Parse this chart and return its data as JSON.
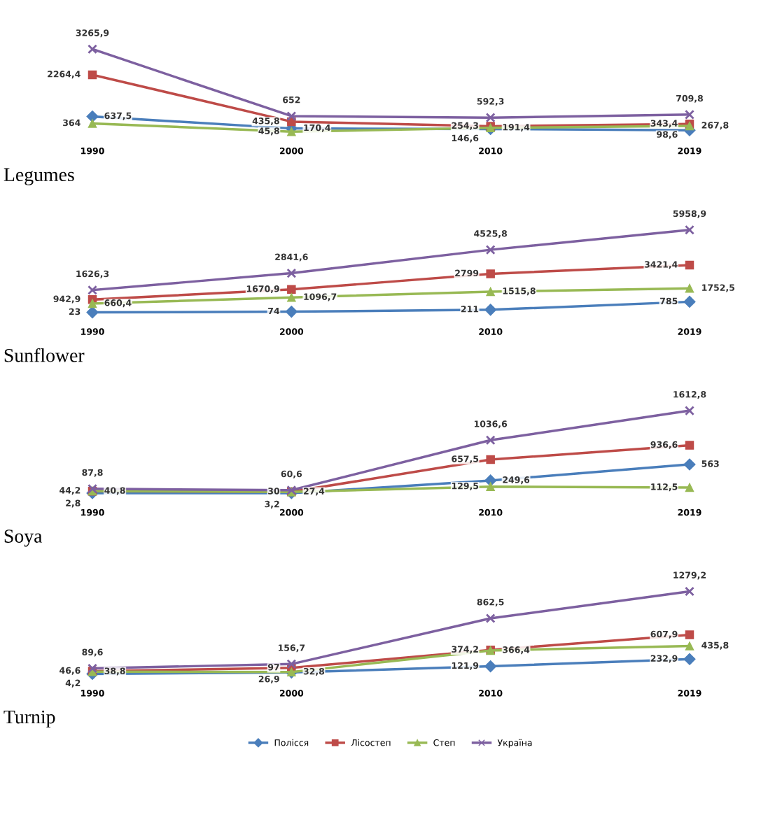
{
  "chart_data": [
    {
      "type": "line",
      "title": "Legumes",
      "categories": [
        "1990",
        "2000",
        "2010",
        "2019"
      ],
      "tick_labels": "x",
      "grid": false,
      "series": [
        {
          "color": "#4a7ebb",
          "marker": "diamond",
          "values": [
            637.5,
            170.4,
            146.6,
            98.6
          ],
          "value_labels": [
            "637,5",
            "170,4",
            "146,6",
            "98,6"
          ]
        },
        {
          "color": "#be4b48",
          "marker": "square",
          "values": [
            2264.4,
            435.8,
            254.3,
            343.4
          ],
          "value_labels": [
            "2264,4",
            "435,8",
            "254,3",
            "343,4"
          ]
        },
        {
          "color": "#98b954",
          "marker": "triangle",
          "values": [
            364,
            45.8,
            191.4,
            267.8
          ],
          "value_labels": [
            "364",
            "45,8",
            "191,4",
            "267,8"
          ]
        },
        {
          "color": "#7d60a0",
          "marker": "cross",
          "values": [
            3265.9,
            652,
            592.3,
            709.8
          ],
          "value_labels": [
            "3265,9",
            "652",
            "592,3",
            "709,8"
          ]
        }
      ]
    },
    {
      "type": "line",
      "title": "Sunflower",
      "categories": [
        "1990",
        "2000",
        "2010",
        "2019"
      ],
      "tick_labels": "x",
      "grid": false,
      "series": [
        {
          "color": "#4a7ebb",
          "marker": "diamond",
          "values": [
            23,
            74,
            211,
            785
          ],
          "value_labels": [
            "23",
            "74",
            "211",
            "785"
          ]
        },
        {
          "color": "#be4b48",
          "marker": "square",
          "values": [
            942.9,
            1670.9,
            2799,
            3421.4
          ],
          "value_labels": [
            "942,9",
            "1670,9",
            "2799",
            "3421,4"
          ]
        },
        {
          "color": "#98b954",
          "marker": "triangle",
          "values": [
            660.4,
            1096.7,
            1515.8,
            1752.5
          ],
          "value_labels": [
            "660,4",
            "1096,7",
            "1515,8",
            "1752,5"
          ]
        },
        {
          "color": "#7d60a0",
          "marker": "cross",
          "values": [
            1626.3,
            2841.6,
            4525.8,
            5958.9
          ],
          "value_labels": [
            "1626,3",
            "2841,6",
            "4525,8",
            "5958,9"
          ]
        }
      ]
    },
    {
      "type": "line",
      "title": "Soya",
      "categories": [
        "1990",
        "2000",
        "2010",
        "2019"
      ],
      "tick_labels": "x",
      "grid": false,
      "series": [
        {
          "color": "#4a7ebb",
          "marker": "diamond",
          "values": [
            2.8,
            3.2,
            249.6,
            563
          ],
          "value_labels": [
            "2,8",
            "3,2",
            "249,6",
            "563"
          ]
        },
        {
          "color": "#be4b48",
          "marker": "square",
          "values": [
            40.8,
            30,
            657.5,
            936.6
          ],
          "value_labels": [
            "40,8",
            "30",
            "657,5",
            "936,6"
          ]
        },
        {
          "color": "#98b954",
          "marker": "triangle",
          "values": [
            44.2,
            27.4,
            129.5,
            112.5
          ],
          "value_labels": [
            "44,2",
            "27,4",
            "129,5",
            "112,5"
          ]
        },
        {
          "color": "#7d60a0",
          "marker": "cross",
          "values": [
            87.8,
            60.6,
            1036.6,
            1612.8
          ],
          "value_labels": [
            "87,8",
            "60,6",
            "1036,6",
            "1612,8"
          ]
        }
      ]
    },
    {
      "type": "line",
      "title": "Turnip",
      "categories": [
        "1990",
        "2000",
        "2010",
        "2019"
      ],
      "tick_labels": "x",
      "grid": false,
      "legend": "bottom",
      "series": [
        {
          "name": "Полісся",
          "color": "#4a7ebb",
          "marker": "diamond",
          "values": [
            4.2,
            26.9,
            121.9,
            232.9
          ],
          "value_labels": [
            "4,2",
            "26,9",
            "121,9",
            "232,9"
          ]
        },
        {
          "name": "Лісостеп",
          "color": "#be4b48",
          "marker": "square",
          "values": [
            46.6,
            97,
            374.2,
            607.9
          ],
          "value_labels": [
            "46,6",
            "97",
            "374,2",
            "607,9"
          ]
        },
        {
          "name": "Степ",
          "color": "#98b954",
          "marker": "triangle",
          "values": [
            38.8,
            32.8,
            366.4,
            435.8
          ],
          "value_labels": [
            "38,8",
            "32,8",
            "366,4",
            "435,8"
          ]
        },
        {
          "name": "Україна",
          "color": "#7d60a0",
          "marker": "cross",
          "values": [
            89.6,
            156.7,
            862.5,
            1279.2
          ],
          "value_labels": [
            "89,6",
            "156,7",
            "862,5",
            "1279,2"
          ]
        }
      ]
    }
  ]
}
